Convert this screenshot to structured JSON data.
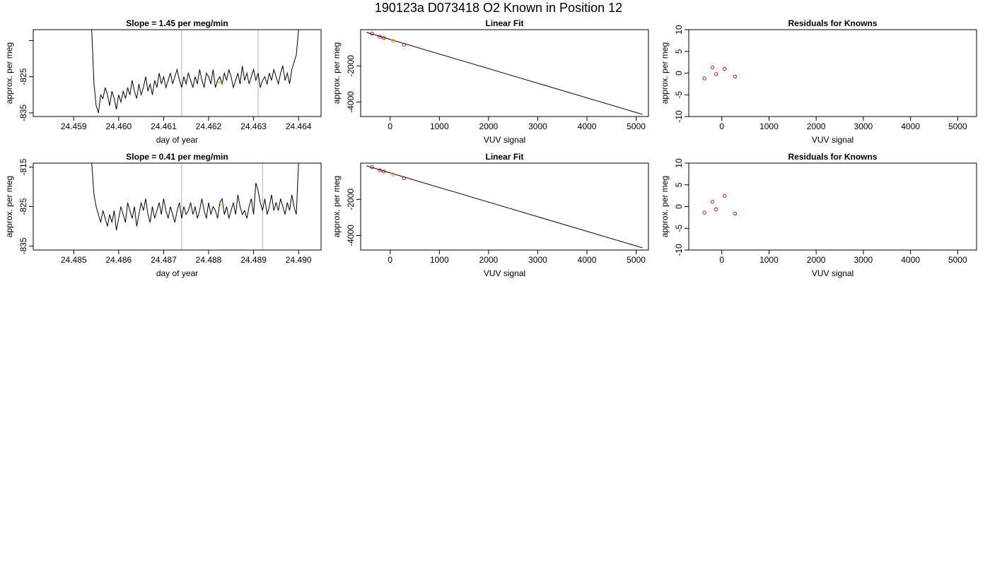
{
  "page": {
    "title": "190123a     D073418   O2 Known in Position  12"
  },
  "colors": {
    "series": "#000000",
    "highlight": "#FFA500",
    "points": "#CC0000",
    "marker_lines": "#BEBEBE"
  },
  "chart_data": [
    {
      "id": "row1-timeseries",
      "type": "line",
      "title": "Slope =  1.45  per meg/min",
      "xlabel": "day of year",
      "ylabel": "approx. per meg",
      "xlim": [
        24.4581,
        24.4645
      ],
      "ylim": [
        -836,
        -812
      ],
      "x_ticks": [
        "24.459",
        "24.460",
        "24.461",
        "24.462",
        "24.463",
        "24.464"
      ],
      "y_ticks": [
        "-825",
        "-835"
      ],
      "y_tick_values": [
        -825,
        -835
      ],
      "x_tick_values": [
        24.459,
        24.46,
        24.461,
        24.462,
        24.463,
        24.464
      ],
      "marker_lines_x": [
        24.4614,
        24.4631
      ],
      "x": [
        24.4594,
        24.45945,
        24.4595,
        24.45955,
        24.4596,
        24.45965,
        24.4597,
        24.45975,
        24.4598,
        24.45985,
        24.4599,
        24.45995,
        24.46,
        24.46005,
        24.4601,
        24.46015,
        24.4602,
        24.46025,
        24.4603,
        24.46035,
        24.4604,
        24.46045,
        24.4605,
        24.46055,
        24.4606,
        24.46065,
        24.4607,
        24.46075,
        24.4608,
        24.46085,
        24.4609,
        24.46095,
        24.461,
        24.46105,
        24.4611,
        24.46115,
        24.4612,
        24.46125,
        24.4613,
        24.46135,
        24.4614,
        24.46145,
        24.4615,
        24.46155,
        24.4616,
        24.46165,
        24.4617,
        24.46175,
        24.4618,
        24.46185,
        24.4619,
        24.46195,
        24.462,
        24.46205,
        24.4621,
        24.46215,
        24.4622,
        24.46225,
        24.4623,
        24.46235,
        24.4624,
        24.46245,
        24.4625,
        24.46255,
        24.4626,
        24.46265,
        24.4627,
        24.46275,
        24.4628,
        24.46285,
        24.4629,
        24.46295,
        24.463,
        24.46305,
        24.4631,
        24.46315,
        24.4632,
        24.46325,
        24.4633,
        24.46335,
        24.4634,
        24.46345,
        24.4635,
        24.46355,
        24.4636,
        24.46365,
        24.4637,
        24.46375,
        24.4638,
        24.46385,
        24.4639,
        24.46395,
        24.464
      ],
      "y": [
        -812,
        -827,
        -833,
        -835,
        -830,
        -831,
        -828,
        -830,
        -833,
        -829,
        -831,
        -834,
        -830,
        -832,
        -829,
        -831,
        -828,
        -830,
        -826,
        -829,
        -831,
        -827,
        -830,
        -828,
        -825,
        -829,
        -827,
        -830,
        -826,
        -828,
        -824,
        -827,
        -825,
        -828,
        -826,
        -824,
        -827,
        -825,
        -823,
        -826,
        -828,
        -825,
        -827,
        -824,
        -826,
        -828,
        -825,
        -827,
        -823,
        -826,
        -828,
        -824,
        -825,
        -827,
        -823,
        -828,
        -826,
        -825,
        -827,
        -824,
        -826,
        -823,
        -825,
        -828,
        -826,
        -824,
        -827,
        -822,
        -826,
        -824,
        -827,
        -825,
        -823,
        -826,
        -824,
        -828,
        -826,
        -825,
        -827,
        -824,
        -826,
        -823,
        -825,
        -827,
        -824,
        -822,
        -826,
        -824,
        -827,
        -823,
        -821,
        -819,
        -812
      ],
      "highlight_point": [
        24.46225,
        -826.5
      ]
    },
    {
      "id": "row1-linearfit",
      "type": "scatter",
      "title": "Linear Fit",
      "xlabel": "VUV signal",
      "ylabel": "approx. per meg",
      "xlim": [
        -600,
        5250
      ],
      "ylim": [
        -4800,
        0
      ],
      "x_ticks": [
        "0",
        "1000",
        "2000",
        "3000",
        "4000",
        "5000"
      ],
      "x_tick_values": [
        0,
        1000,
        2000,
        3000,
        4000,
        5000
      ],
      "y_ticks": [
        "-2000",
        "-4000"
      ],
      "y_tick_values": [
        -2000,
        -4000
      ],
      "points_x": [
        -370,
        -210,
        -130,
        280
      ],
      "points_y": [
        -220,
        -390,
        -460,
        -830
      ],
      "highlight_point": [
        60,
        -620
      ],
      "fit_line": [
        [
          -480,
          -150
        ],
        [
          5130,
          -4680
        ]
      ]
    },
    {
      "id": "row1-residuals",
      "type": "scatter",
      "title": "Residuals for Knowns",
      "xlabel": "VUV signal",
      "ylabel": "approx. per meg",
      "xlim": [
        -700,
        5400
      ],
      "ylim": [
        -10,
        10
      ],
      "x_ticks": [
        "0",
        "1000",
        "2000",
        "3000",
        "4000",
        "5000"
      ],
      "x_tick_values": [
        0,
        1000,
        2000,
        3000,
        4000,
        5000
      ],
      "y_ticks": [
        "10",
        "5",
        "0",
        "-5",
        "-10"
      ],
      "y_tick_values": [
        10,
        5,
        0,
        -5,
        -10
      ],
      "points_x": [
        -370,
        -200,
        -120,
        60,
        280
      ],
      "points_y": [
        -1.2,
        1.3,
        -0.2,
        1.0,
        -0.8
      ]
    },
    {
      "id": "row2-timeseries",
      "type": "line",
      "title": "Slope =  0.41  per meg/min",
      "xlabel": "day of year",
      "ylabel": "approx. per meg",
      "xlim": [
        24.4841,
        24.4905
      ],
      "ylim": [
        -836,
        -814
      ],
      "x_ticks": [
        "24.485",
        "24.486",
        "24.487",
        "24.488",
        "24.489",
        "24.490"
      ],
      "x_tick_values": [
        24.485,
        24.486,
        24.487,
        24.488,
        24.489,
        24.49
      ],
      "y_ticks": [
        "-815",
        "-825",
        "-835"
      ],
      "y_tick_values": [
        -815,
        -825,
        -835
      ],
      "marker_lines_x": [
        24.4874,
        24.4892
      ],
      "x": [
        24.4854,
        24.48545,
        24.4855,
        24.48555,
        24.4856,
        24.48565,
        24.4857,
        24.48575,
        24.4858,
        24.48585,
        24.4859,
        24.48595,
        24.486,
        24.48605,
        24.4861,
        24.48615,
        24.4862,
        24.48625,
        24.4863,
        24.48635,
        24.4864,
        24.48645,
        24.4865,
        24.48655,
        24.4866,
        24.48665,
        24.4867,
        24.48675,
        24.4868,
        24.48685,
        24.4869,
        24.48695,
        24.487,
        24.48705,
        24.4871,
        24.48715,
        24.4872,
        24.48725,
        24.4873,
        24.48735,
        24.4874,
        24.48745,
        24.4875,
        24.48755,
        24.4876,
        24.48765,
        24.4877,
        24.48775,
        24.4878,
        24.48785,
        24.4879,
        24.48795,
        24.488,
        24.48805,
        24.4881,
        24.48815,
        24.4882,
        24.48825,
        24.4883,
        24.48835,
        24.4884,
        24.48845,
        24.4885,
        24.48855,
        24.4886,
        24.48865,
        24.4887,
        24.48875,
        24.4888,
        24.48885,
        24.4889,
        24.48895,
        24.489,
        24.48905,
        24.4891,
        24.48915,
        24.4892,
        24.48925,
        24.4893,
        24.48935,
        24.4894,
        24.48945,
        24.4895,
        24.48955,
        24.4896,
        24.48965,
        24.4897,
        24.48975,
        24.4898,
        24.48985,
        24.4899,
        24.48995,
        24.49
      ],
      "y": [
        -814,
        -822,
        -825,
        -827,
        -829,
        -826,
        -828,
        -830,
        -827,
        -829,
        -826,
        -831,
        -828,
        -825,
        -827,
        -829,
        -824,
        -826,
        -828,
        -825,
        -830,
        -827,
        -824,
        -826,
        -823,
        -827,
        -829,
        -825,
        -828,
        -826,
        -824,
        -827,
        -823,
        -826,
        -828,
        -825,
        -827,
        -829,
        -826,
        -824,
        -828,
        -825,
        -827,
        -826,
        -824,
        -827,
        -825,
        -828,
        -826,
        -823,
        -826,
        -828,
        -824,
        -827,
        -825,
        -826,
        -828,
        -824,
        -823,
        -827,
        -825,
        -828,
        -826,
        -824,
        -827,
        -822,
        -825,
        -827,
        -826,
        -828,
        -825,
        -823,
        -827,
        -819,
        -821,
        -824,
        -826,
        -823,
        -827,
        -825,
        -822,
        -826,
        -824,
        -826,
        -823,
        -825,
        -827,
        -824,
        -826,
        -822,
        -825,
        -827,
        -814
      ],
      "highlight_point": [
        24.4883,
        -824.5
      ]
    },
    {
      "id": "row2-linearfit",
      "type": "scatter",
      "title": "Linear Fit",
      "xlabel": "VUV signal",
      "ylabel": "approx. per meg",
      "xlim": [
        -600,
        5250
      ],
      "ylim": [
        -4800,
        0
      ],
      "x_ticks": [
        "0",
        "1000",
        "2000",
        "3000",
        "4000",
        "5000"
      ],
      "x_tick_values": [
        0,
        1000,
        2000,
        3000,
        4000,
        5000
      ],
      "y_ticks": [
        "-2000",
        "-4000"
      ],
      "y_tick_values": [
        -2000,
        -4000
      ],
      "points_x": [
        -370,
        -210,
        -130,
        280
      ],
      "points_y": [
        -220,
        -390,
        -460,
        -830
      ],
      "highlight_point": [
        60,
        -620
      ],
      "fit_line": [
        [
          -480,
          -150
        ],
        [
          5130,
          -4680
        ]
      ]
    },
    {
      "id": "row2-residuals",
      "type": "scatter",
      "title": "Residuals for Knowns",
      "xlabel": "VUV signal",
      "ylabel": "approx. per meg",
      "xlim": [
        -700,
        5400
      ],
      "ylim": [
        -10,
        10
      ],
      "x_ticks": [
        "0",
        "1000",
        "2000",
        "3000",
        "4000",
        "5000"
      ],
      "x_tick_values": [
        0,
        1000,
        2000,
        3000,
        4000,
        5000
      ],
      "y_ticks": [
        "10",
        "5",
        "0",
        "-5",
        "-10"
      ],
      "y_tick_values": [
        10,
        5,
        0,
        -5,
        -10
      ],
      "points_x": [
        -370,
        -200,
        -120,
        60,
        280
      ],
      "points_y": [
        -1.4,
        1.1,
        -0.6,
        2.5,
        -1.6
      ]
    }
  ]
}
